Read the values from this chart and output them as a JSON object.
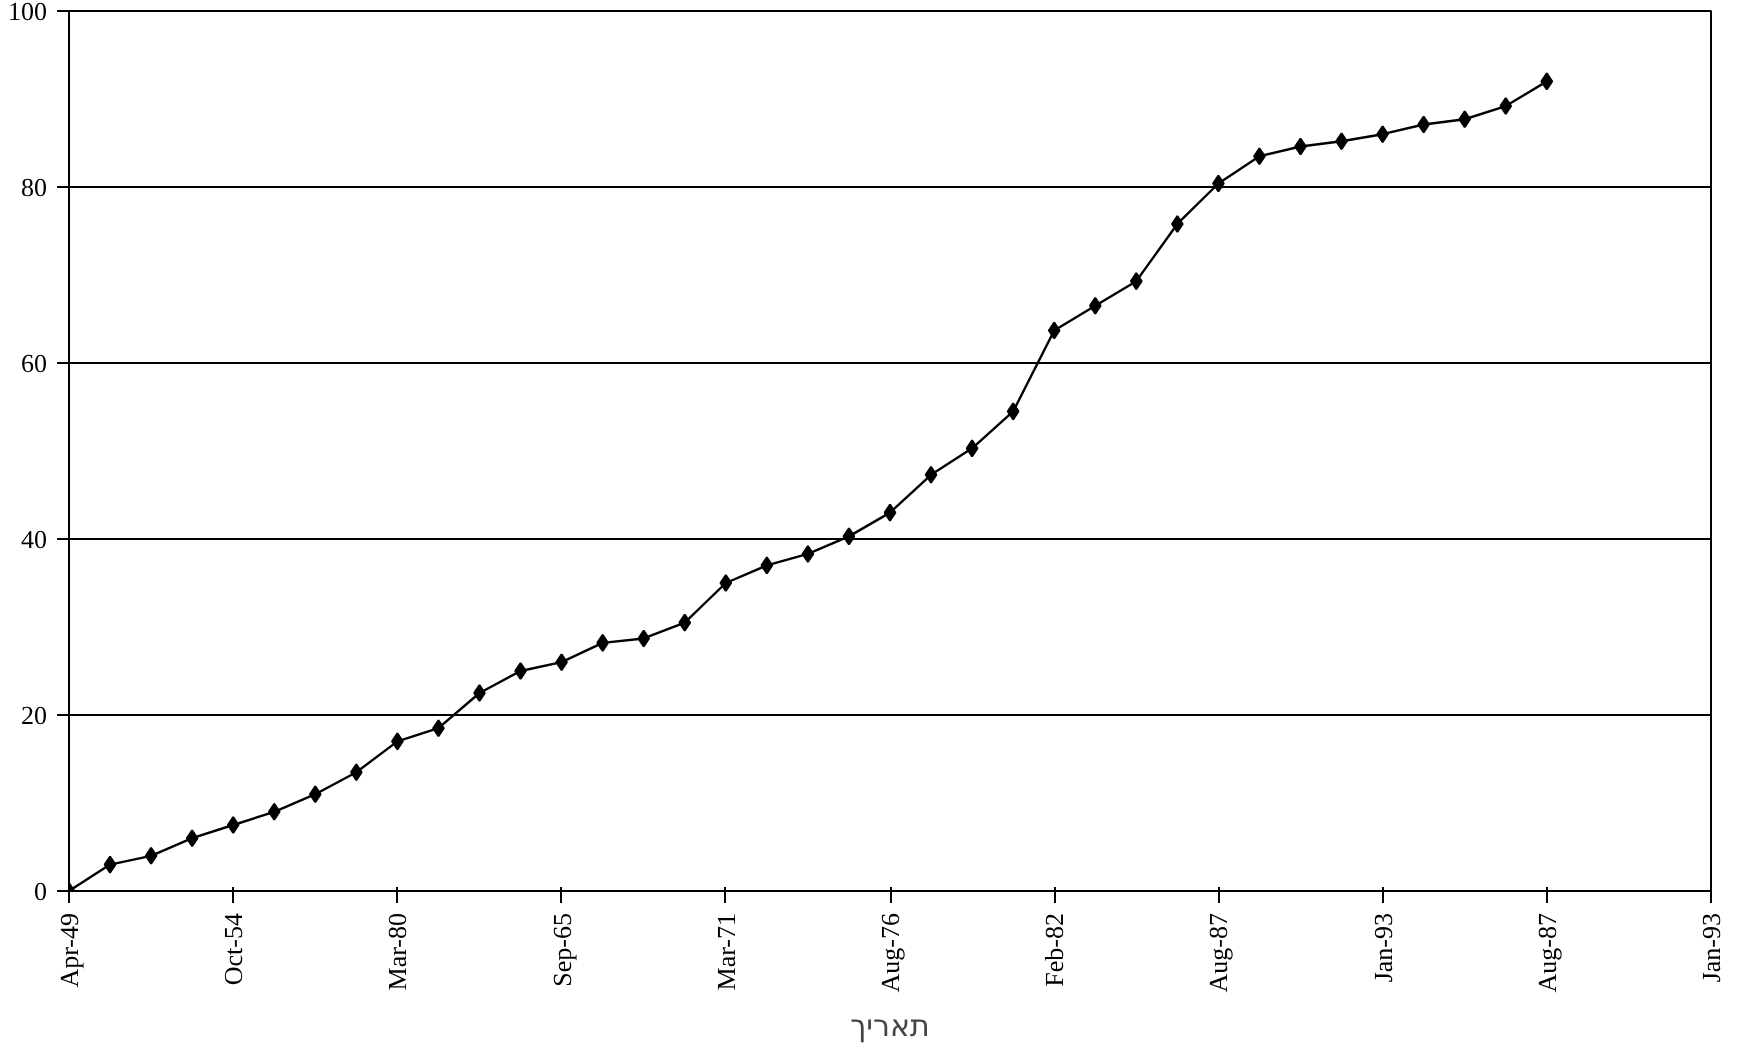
{
  "chart_data": {
    "type": "line",
    "xlabel": "תאריך",
    "marker": "diamond",
    "line_style": "solid",
    "grid": "y",
    "categories": [
      "Apr-49",
      null,
      null,
      null,
      "Oct-54",
      null,
      null,
      null,
      "Mar-80",
      null,
      null,
      null,
      "Sep-65",
      null,
      null,
      null,
      "Mar-71",
      null,
      null,
      null,
      "Aug-76",
      null,
      null,
      null,
      "Feb-82",
      null,
      null,
      null,
      "Aug-87",
      null,
      null,
      null,
      "Jan-93",
      null,
      null,
      null,
      "Aug-87",
      null,
      null,
      null,
      "Jan-93"
    ],
    "ylim": [
      0,
      100
    ],
    "yticks": [
      0,
      20,
      40,
      60,
      80,
      100
    ],
    "series": [
      {
        "color": "#000000",
        "values": [
          0,
          3,
          4,
          6,
          7.5,
          9,
          11,
          13.5,
          17,
          18.5,
          22.5,
          25,
          26,
          28.2,
          28.7,
          30.5,
          35,
          37,
          38.3,
          40.3,
          43,
          47.3,
          50.3,
          54.5,
          63.7,
          66.5,
          69.3,
          75.8,
          80.4,
          83.5,
          84.6,
          85.2,
          86,
          87.1,
          87.7,
          89.2,
          92,
          null,
          null,
          null,
          null
        ]
      }
    ]
  }
}
